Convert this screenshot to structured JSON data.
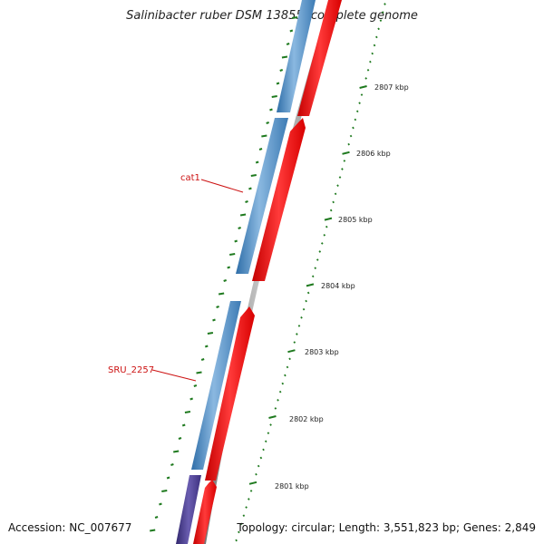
{
  "title": "Salinibacter ruber DSM 13855, complete genome",
  "footer": {
    "accession": "Accession: NC_007677",
    "summary": "Topology: circular; Length: 3,551,823 bp; Genes: 2,849"
  },
  "colors": {
    "forward_gene": "#4a86bd",
    "reverse_gene": "#ee1111",
    "other_gene": "#4b3f8f",
    "backbone": "#999999",
    "tick": "#1f7a1f",
    "label": "#cc1111"
  },
  "scale_labels": [
    "2807 kbp",
    "2806 kbp",
    "2805 kbp",
    "2804 kbp",
    "2803 kbp",
    "2802 kbp",
    "2801 kbp"
  ],
  "gene_labels": [
    "cat1",
    "SRU_2257"
  ]
}
